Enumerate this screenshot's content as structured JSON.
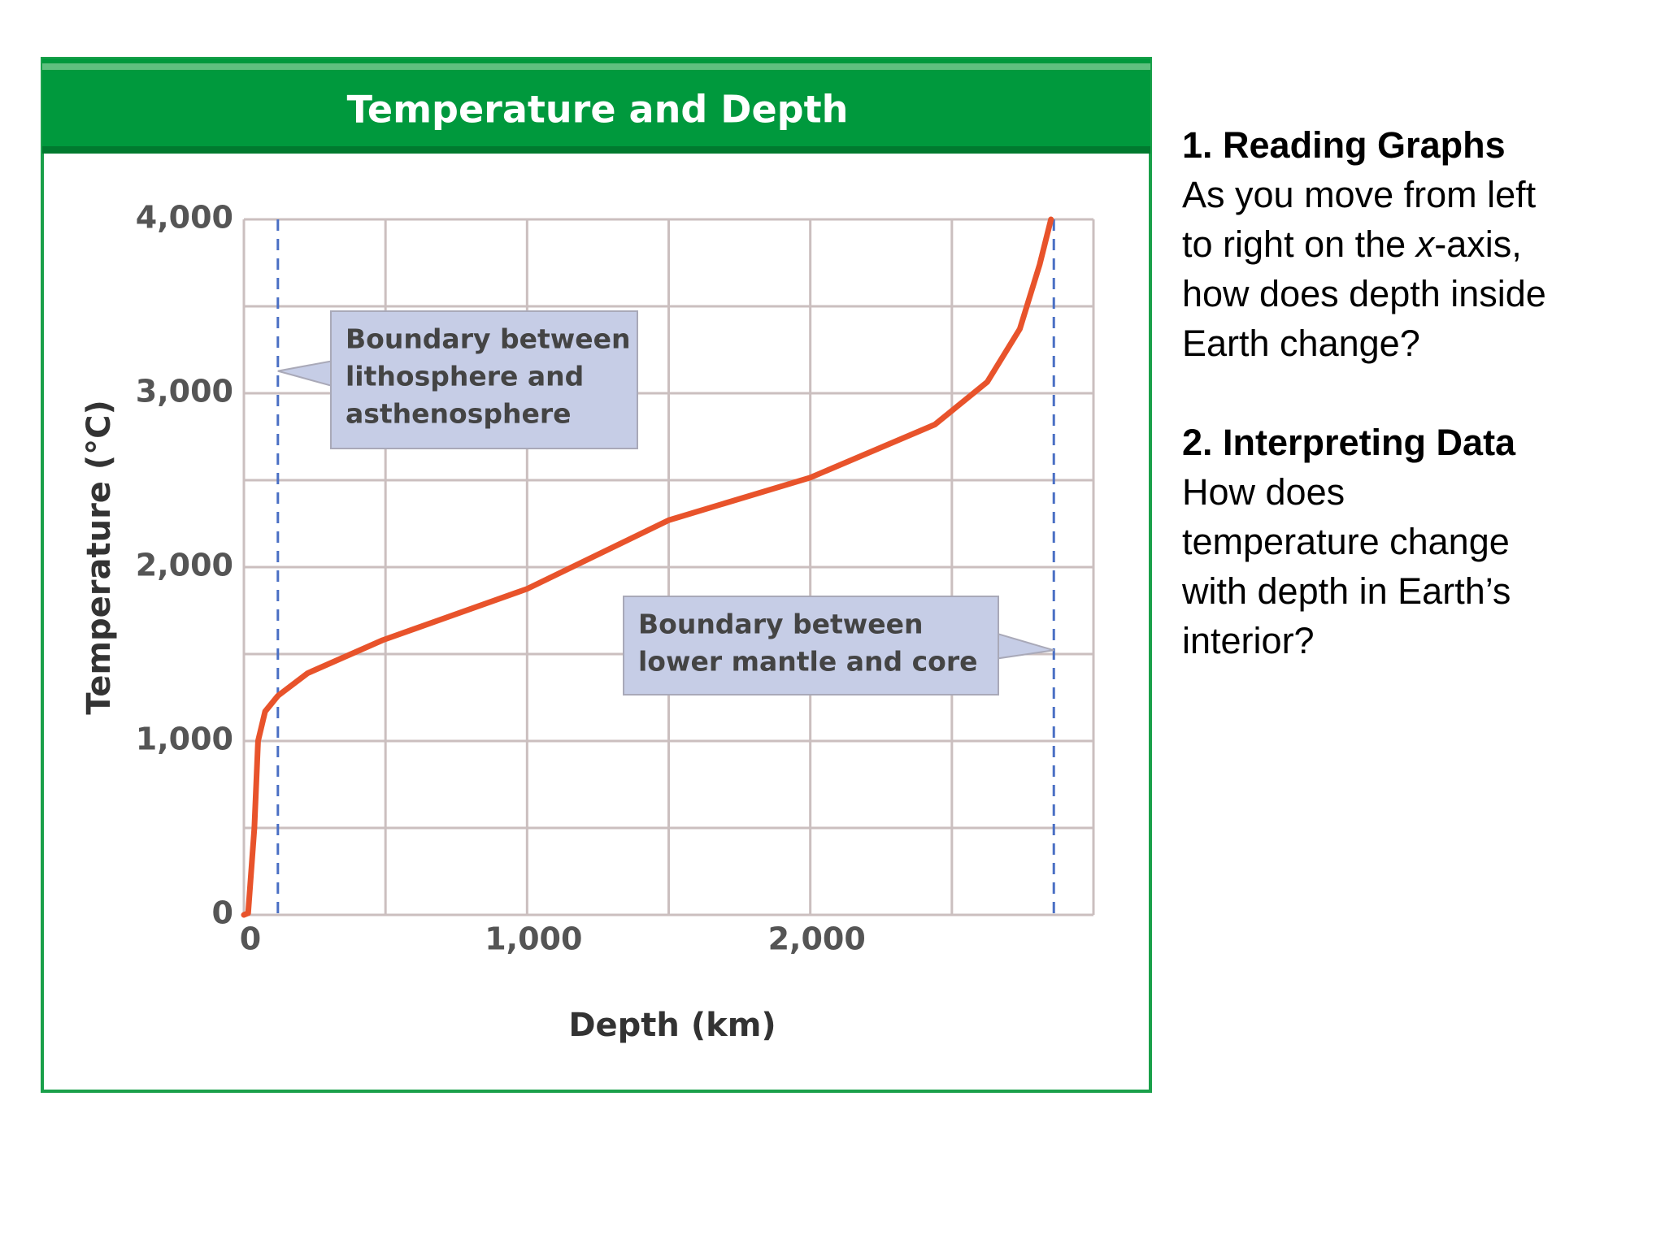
{
  "chart_data": {
    "type": "line",
    "title": "Temperature and Depth",
    "xlabel": "Depth (km)",
    "ylabel": "Temperature (°C)",
    "x": [
      0,
      15,
      37,
      50,
      75,
      120,
      225,
      490,
      1000,
      1500,
      2000,
      2440,
      2625,
      2740,
      2810,
      2850
    ],
    "series": [
      {
        "name": "Temperature",
        "color": "#e8532b",
        "values": [
          0,
          10,
          500,
          1000,
          1170,
          1260,
          1390,
          1580,
          1875,
          2270,
          2515,
          2820,
          3065,
          3370,
          3740,
          4000
        ]
      }
    ],
    "xlim": [
      0,
      3000
    ],
    "ylim": [
      0,
      4000
    ],
    "xticks": [
      0,
      {
        "value": 1000,
        "label": "1,000"
      },
      {
        "value": 2000,
        "label": "2,000"
      }
    ],
    "yticks": [
      0,
      {
        "value": 1000,
        "label": "1,000"
      },
      {
        "value": 2000,
        "label": "2,000"
      },
      {
        "value": 3000,
        "label": "3,000"
      },
      {
        "value": 4000,
        "label": "4,000"
      }
    ],
    "xgrid": [
      0,
      500,
      1000,
      1500,
      2000,
      2500,
      3000
    ],
    "ygrid": [
      0,
      500,
      1000,
      1500,
      2000,
      2500,
      3000,
      3500,
      4000
    ],
    "grid": true,
    "annotations": [
      {
        "x": 120,
        "y": 3100,
        "lines": [
          "Boundary between",
          "lithosphere and",
          "asthenosphere"
        ]
      },
      {
        "x": 2860,
        "y": 1550,
        "lines": [
          "Boundary between",
          "lower mantle and core"
        ]
      }
    ]
  },
  "questions": [
    {
      "heading": "1. Reading Graphs",
      "lines": [
        "As you move from left",
        {
          "before": "to right on the ",
          "italic": "x",
          "after": "-axis,"
        },
        "how does depth inside",
        "Earth change?"
      ]
    },
    {
      "heading": "2. Interpreting Data",
      "lines": [
        "How does",
        "temperature change",
        "with depth in Earth’s",
        "interior?"
      ]
    }
  ]
}
